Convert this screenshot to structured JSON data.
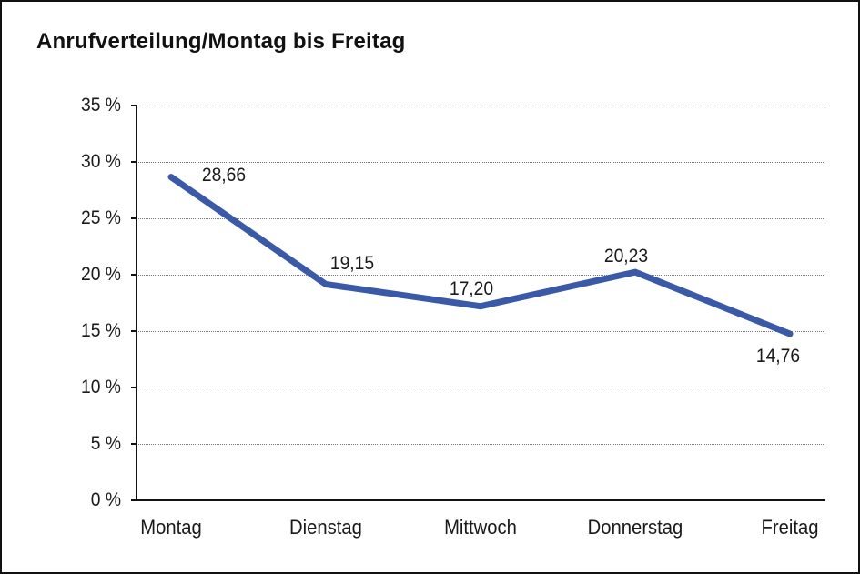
{
  "title": "Anrufverteilung/Montag bis Freitag",
  "colors": {
    "line": "#3A5AA8",
    "axis": "#111111",
    "gridline": "#787878",
    "text": "#1a1a1a",
    "background": "#ffffff"
  },
  "chart_data": {
    "type": "line",
    "title": "Anrufverteilung/Montag bis Freitag",
    "categories": [
      "Montag",
      "Dienstag",
      "Mittwoch",
      "Donnerstag",
      "Freitag"
    ],
    "series": [
      {
        "name": "Anrufverteilung",
        "values": [
          28.66,
          19.15,
          17.2,
          20.23,
          14.76
        ]
      }
    ],
    "value_labels": [
      "28,66",
      "19,15",
      "17,20",
      "20,23",
      "14,76"
    ],
    "y_tick_labels": [
      "0 %",
      "5 %",
      "10 %",
      "15 %",
      "20 %",
      "25 %",
      "30 %",
      "35 %"
    ],
    "ylim": [
      0,
      35
    ],
    "y_tick_step": 5,
    "grid": "horizontal-dotted",
    "legend": "none",
    "line_color": "#3A5AA8"
  }
}
